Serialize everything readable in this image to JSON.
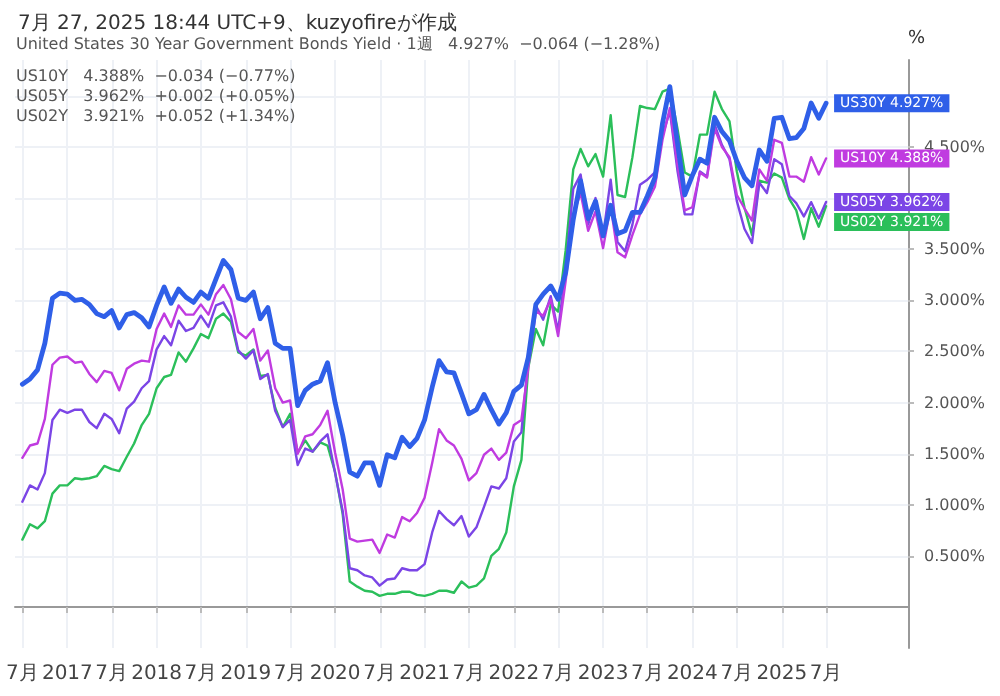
{
  "chart_data": {
    "type": "line",
    "title": "7月 27, 2025 18:44 UTC+9、kuzyofireが作成",
    "ylabel": "%",
    "annotations": [
      "United States 30 Year Government Bonds Yield · 1週   4.927%  −0.064 (−1.28%)",
      "US10Y   4.388%  −0.034 (−0.77%)",
      "US05Y   3.962%  +0.002 (+0.05%)",
      "US02Y   3.921%  +0.052 (+1.34%)"
    ],
    "x": [
      "2016-07",
      "2016-08",
      "2016-09",
      "2016-10",
      "2016-11",
      "2016-12",
      "2017-01",
      "2017-02",
      "2017-03",
      "2017-04",
      "2017-05",
      "2017-06",
      "2017-07",
      "2017-08",
      "2017-09",
      "2017-10",
      "2017-11",
      "2017-12",
      "2018-01",
      "2018-02",
      "2018-03",
      "2018-04",
      "2018-05",
      "2018-06",
      "2018-07",
      "2018-08",
      "2018-09",
      "2018-10",
      "2018-11",
      "2018-12",
      "2019-01",
      "2019-02",
      "2019-03",
      "2019-04",
      "2019-05",
      "2019-06",
      "2019-07",
      "2019-08",
      "2019-09",
      "2019-10",
      "2019-11",
      "2019-12",
      "2020-01",
      "2020-02",
      "2020-03",
      "2020-04",
      "2020-05",
      "2020-06",
      "2020-07",
      "2020-08",
      "2020-09",
      "2020-10",
      "2020-11",
      "2020-12",
      "2021-01",
      "2021-02",
      "2021-03",
      "2021-04",
      "2021-05",
      "2021-06",
      "2021-07",
      "2021-08",
      "2021-09",
      "2021-10",
      "2021-11",
      "2021-12",
      "2022-01",
      "2022-02",
      "2022-03",
      "2022-04",
      "2022-05",
      "2022-06",
      "2022-07",
      "2022-08",
      "2022-09",
      "2022-10",
      "2022-11",
      "2022-12",
      "2023-01",
      "2023-02",
      "2023-03",
      "2023-04",
      "2023-05",
      "2023-06",
      "2023-07",
      "2023-08",
      "2023-09",
      "2023-10",
      "2023-11",
      "2023-12",
      "2024-01",
      "2024-02",
      "2024-03",
      "2024-04",
      "2024-05",
      "2024-06",
      "2024-07",
      "2024-08",
      "2024-09",
      "2024-10",
      "2024-11",
      "2024-12",
      "2025-01",
      "2025-02",
      "2025-03",
      "2025-04",
      "2025-05",
      "2025-06",
      "2025-07"
    ],
    "series": [
      {
        "name": "US30Y",
        "color": "#2f5fe8",
        "values": [
          2.18,
          2.23,
          2.32,
          2.58,
          3.02,
          3.07,
          3.06,
          3.0,
          3.01,
          2.96,
          2.87,
          2.84,
          2.9,
          2.73,
          2.86,
          2.88,
          2.83,
          2.74,
          2.95,
          3.13,
          2.97,
          3.11,
          3.03,
          2.98,
          3.08,
          3.02,
          3.21,
          3.39,
          3.3,
          3.02,
          3.0,
          3.08,
          2.82,
          2.93,
          2.58,
          2.53,
          2.53,
          1.97,
          2.12,
          2.18,
          2.21,
          2.39,
          2.0,
          1.68,
          1.32,
          1.28,
          1.41,
          1.41,
          1.19,
          1.49,
          1.46,
          1.66,
          1.57,
          1.65,
          1.83,
          2.15,
          2.41,
          2.3,
          2.29,
          2.09,
          1.89,
          1.93,
          2.08,
          1.93,
          1.79,
          1.9,
          2.11,
          2.17,
          2.44,
          2.96,
          3.06,
          3.14,
          3.01,
          3.27,
          3.79,
          4.17,
          3.8,
          3.97,
          3.63,
          3.93,
          3.65,
          3.68,
          3.86,
          3.86,
          4.02,
          4.2,
          4.73,
          5.09,
          4.54,
          4.03,
          4.22,
          4.38,
          4.34,
          4.79,
          4.65,
          4.56,
          4.36,
          4.2,
          4.12,
          4.47,
          4.36,
          4.78,
          4.79,
          4.58,
          4.59,
          4.68,
          4.93,
          4.78,
          4.927
        ],
        "value_labels": [
          null,
          null,
          null,
          null,
          null,
          null,
          null,
          null,
          null,
          null,
          null,
          null,
          null,
          null,
          null,
          null,
          null,
          null,
          null,
          null,
          null,
          null,
          null,
          null,
          null,
          null,
          null,
          null,
          null,
          null,
          null,
          null,
          null,
          null,
          null,
          null,
          null,
          null,
          null,
          null,
          null,
          null,
          null,
          null,
          null,
          null,
          null,
          null,
          null,
          null,
          null,
          null,
          null,
          null,
          null,
          null,
          null,
          null,
          null,
          null,
          null,
          null,
          null,
          null,
          null,
          null,
          null,
          null,
          null,
          null,
          null,
          null,
          null,
          null,
          null,
          null,
          null,
          null,
          null,
          null,
          null,
          null,
          null,
          null,
          null,
          null,
          null,
          null,
          null,
          null,
          null,
          null,
          null,
          null,
          null,
          null,
          null,
          null,
          null,
          null,
          null,
          null,
          null,
          null,
          null,
          null,
          null,
          null,
          "4.927%"
        ]
      },
      {
        "name": "US10Y",
        "color": "#c03be0",
        "values": [
          1.46,
          1.58,
          1.6,
          1.84,
          2.37,
          2.44,
          2.45,
          2.39,
          2.4,
          2.28,
          2.2,
          2.31,
          2.29,
          2.12,
          2.33,
          2.38,
          2.41,
          2.4,
          2.72,
          2.87,
          2.74,
          2.95,
          2.86,
          2.86,
          2.96,
          2.86,
          3.06,
          3.15,
          3.01,
          2.69,
          2.63,
          2.72,
          2.41,
          2.51,
          2.14,
          2.0,
          2.02,
          1.5,
          1.67,
          1.69,
          1.78,
          1.92,
          1.51,
          1.15,
          0.67,
          0.64,
          0.65,
          0.66,
          0.53,
          0.71,
          0.68,
          0.88,
          0.84,
          0.92,
          1.07,
          1.41,
          1.74,
          1.63,
          1.58,
          1.45,
          1.24,
          1.31,
          1.49,
          1.55,
          1.44,
          1.51,
          1.78,
          1.83,
          2.34,
          2.89,
          2.85,
          3.01,
          2.65,
          3.19,
          3.83,
          4.05,
          3.68,
          3.87,
          3.51,
          3.92,
          3.47,
          3.42,
          3.64,
          3.84,
          3.96,
          4.11,
          4.57,
          4.88,
          4.33,
          3.88,
          3.91,
          4.25,
          4.2,
          4.68,
          4.5,
          4.4,
          4.03,
          3.9,
          3.78,
          4.28,
          4.17,
          4.57,
          4.54,
          4.21,
          4.21,
          4.16,
          4.4,
          4.23,
          4.388
        ],
        "value_labels": [
          null,
          null,
          null,
          null,
          null,
          null,
          null,
          null,
          null,
          null,
          null,
          null,
          null,
          null,
          null,
          null,
          null,
          null,
          null,
          null,
          null,
          null,
          null,
          null,
          null,
          null,
          null,
          null,
          null,
          null,
          null,
          null,
          null,
          null,
          null,
          null,
          null,
          null,
          null,
          null,
          null,
          null,
          null,
          null,
          null,
          null,
          null,
          null,
          null,
          null,
          null,
          null,
          null,
          null,
          null,
          null,
          null,
          null,
          null,
          null,
          null,
          null,
          null,
          null,
          null,
          null,
          null,
          null,
          null,
          null,
          null,
          null,
          null,
          null,
          null,
          null,
          null,
          null,
          null,
          null,
          null,
          null,
          null,
          null,
          null,
          null,
          null,
          null,
          null,
          null,
          null,
          null,
          null,
          null,
          null,
          null,
          null,
          null,
          null,
          null,
          null,
          null,
          null,
          null,
          null,
          null,
          null,
          null,
          "4.388%"
        ]
      },
      {
        "name": "US05Y",
        "color": "#7b45e6",
        "values": [
          1.03,
          1.19,
          1.15,
          1.31,
          1.83,
          1.93,
          1.9,
          1.93,
          1.93,
          1.81,
          1.75,
          1.89,
          1.84,
          1.7,
          1.94,
          2.01,
          2.14,
          2.21,
          2.52,
          2.65,
          2.56,
          2.8,
          2.7,
          2.73,
          2.85,
          2.74,
          2.95,
          2.98,
          2.84,
          2.51,
          2.43,
          2.51,
          2.23,
          2.28,
          1.92,
          1.76,
          1.83,
          1.39,
          1.55,
          1.52,
          1.62,
          1.69,
          1.31,
          0.94,
          0.38,
          0.36,
          0.31,
          0.29,
          0.21,
          0.27,
          0.28,
          0.38,
          0.36,
          0.36,
          0.42,
          0.73,
          0.94,
          0.86,
          0.8,
          0.89,
          0.69,
          0.78,
          0.98,
          1.18,
          1.16,
          1.26,
          1.62,
          1.71,
          2.42,
          2.95,
          2.81,
          3.04,
          2.7,
          3.3,
          4.09,
          4.23,
          3.74,
          4.0,
          3.63,
          4.18,
          3.57,
          3.48,
          3.74,
          4.13,
          4.18,
          4.25,
          4.61,
          4.85,
          4.27,
          3.84,
          3.84,
          4.26,
          4.21,
          4.72,
          4.52,
          4.38,
          3.97,
          3.7,
          3.56,
          4.15,
          4.05,
          4.38,
          4.33,
          4.02,
          3.95,
          3.82,
          3.96,
          3.8,
          3.962
        ],
        "value_labels": [
          null,
          null,
          null,
          null,
          null,
          null,
          null,
          null,
          null,
          null,
          null,
          null,
          null,
          null,
          null,
          null,
          null,
          null,
          null,
          null,
          null,
          null,
          null,
          null,
          null,
          null,
          null,
          null,
          null,
          null,
          null,
          null,
          null,
          null,
          null,
          null,
          null,
          null,
          null,
          null,
          null,
          null,
          null,
          null,
          null,
          null,
          null,
          null,
          null,
          null,
          null,
          null,
          null,
          null,
          null,
          null,
          null,
          null,
          null,
          null,
          null,
          null,
          null,
          null,
          null,
          null,
          null,
          null,
          null,
          null,
          null,
          null,
          null,
          null,
          null,
          null,
          null,
          null,
          null,
          null,
          null,
          null,
          null,
          null,
          null,
          null,
          null,
          null,
          null,
          null,
          null,
          null,
          null,
          null,
          null,
          null,
          null,
          null,
          null,
          null,
          null,
          null,
          null,
          null,
          null,
          null,
          null,
          null,
          "3.962%"
        ]
      },
      {
        "name": "US02Y",
        "color": "#2bbf5a",
        "values": [
          0.66,
          0.81,
          0.77,
          0.84,
          1.11,
          1.19,
          1.19,
          1.26,
          1.25,
          1.26,
          1.28,
          1.38,
          1.35,
          1.33,
          1.47,
          1.6,
          1.78,
          1.89,
          2.14,
          2.25,
          2.27,
          2.49,
          2.4,
          2.53,
          2.67,
          2.63,
          2.82,
          2.87,
          2.79,
          2.49,
          2.46,
          2.52,
          2.26,
          2.27,
          1.95,
          1.76,
          1.89,
          1.51,
          1.63,
          1.52,
          1.61,
          1.58,
          1.32,
          0.91,
          0.25,
          0.2,
          0.16,
          0.15,
          0.11,
          0.13,
          0.13,
          0.15,
          0.15,
          0.12,
          0.11,
          0.13,
          0.16,
          0.16,
          0.14,
          0.25,
          0.19,
          0.21,
          0.28,
          0.5,
          0.57,
          0.73,
          1.18,
          1.44,
          2.34,
          2.72,
          2.56,
          2.96,
          2.89,
          3.49,
          4.28,
          4.48,
          4.31,
          4.43,
          4.21,
          4.81,
          4.03,
          4.01,
          4.4,
          4.9,
          4.88,
          4.87,
          5.04,
          5.07,
          4.68,
          4.25,
          4.21,
          4.62,
          4.62,
          5.04,
          4.87,
          4.75,
          4.26,
          3.91,
          3.64,
          4.17,
          4.15,
          4.24,
          4.2,
          3.99,
          3.88,
          3.6,
          3.9,
          3.72,
          3.921
        ],
        "value_labels": [
          null,
          null,
          null,
          null,
          null,
          null,
          null,
          null,
          null,
          null,
          null,
          null,
          null,
          null,
          null,
          null,
          null,
          null,
          null,
          null,
          null,
          null,
          null,
          null,
          null,
          null,
          null,
          null,
          null,
          null,
          null,
          null,
          null,
          null,
          null,
          null,
          null,
          null,
          null,
          null,
          null,
          null,
          null,
          null,
          null,
          null,
          null,
          null,
          null,
          null,
          null,
          null,
          null,
          null,
          null,
          null,
          null,
          null,
          null,
          null,
          null,
          null,
          null,
          null,
          null,
          null,
          null,
          null,
          null,
          null,
          null,
          null,
          null,
          null,
          null,
          null,
          null,
          null,
          null,
          null,
          null,
          null,
          null,
          null,
          null,
          null,
          null,
          null,
          null,
          null,
          null,
          null,
          null,
          null,
          null,
          null,
          null,
          null,
          null,
          null,
          null,
          null,
          null,
          null,
          null,
          null,
          null,
          null,
          "3.921%"
        ]
      }
    ],
    "xlim": [
      "2016-06",
      "2026-06"
    ],
    "xticks": [
      {
        "value": "2016-07",
        "label": "7月"
      },
      {
        "value": "2017",
        "label": "2017"
      },
      {
        "value": "2017-07",
        "label": "7月"
      },
      {
        "value": "2018",
        "label": "2018"
      },
      {
        "value": "2018-07",
        "label": "7月"
      },
      {
        "value": "2019",
        "label": "2019"
      },
      {
        "value": "2019-07",
        "label": "7月"
      },
      {
        "value": "2020",
        "label": "2020"
      },
      {
        "value": "2020-07",
        "label": "7月"
      },
      {
        "value": "2021",
        "label": "2021"
      },
      {
        "value": "2021-07",
        "label": "7月"
      },
      {
        "value": "2022",
        "label": "2022"
      },
      {
        "value": "2022-07",
        "label": "7月"
      },
      {
        "value": "2023",
        "label": "2023"
      },
      {
        "value": "2023-07",
        "label": "7月"
      },
      {
        "value": "2024",
        "label": "2024"
      },
      {
        "value": "2024-07",
        "label": "7月"
      },
      {
        "value": "2025",
        "label": "2025"
      },
      {
        "value": "2025-07",
        "label": "7月"
      }
    ],
    "ylim": [
      -0.4,
      5.35
    ],
    "yticks": [
      {
        "value": 0.5,
        "label": "0.500%"
      },
      {
        "value": 1.0,
        "label": "1.000%"
      },
      {
        "value": 1.5,
        "label": "1.500%"
      },
      {
        "value": 2.0,
        "label": "2.000%"
      },
      {
        "value": 2.5,
        "label": "2.500%"
      },
      {
        "value": 3.0,
        "label": "3.000%"
      },
      {
        "value": 3.5,
        "label": "3.500%"
      },
      {
        "value": 4.0,
        "label": null
      },
      {
        "value": 4.5,
        "label": "4.500%"
      },
      {
        "value": 5.0,
        "label": null
      }
    ],
    "grid": true,
    "marker": "none",
    "line_style": "solid"
  }
}
